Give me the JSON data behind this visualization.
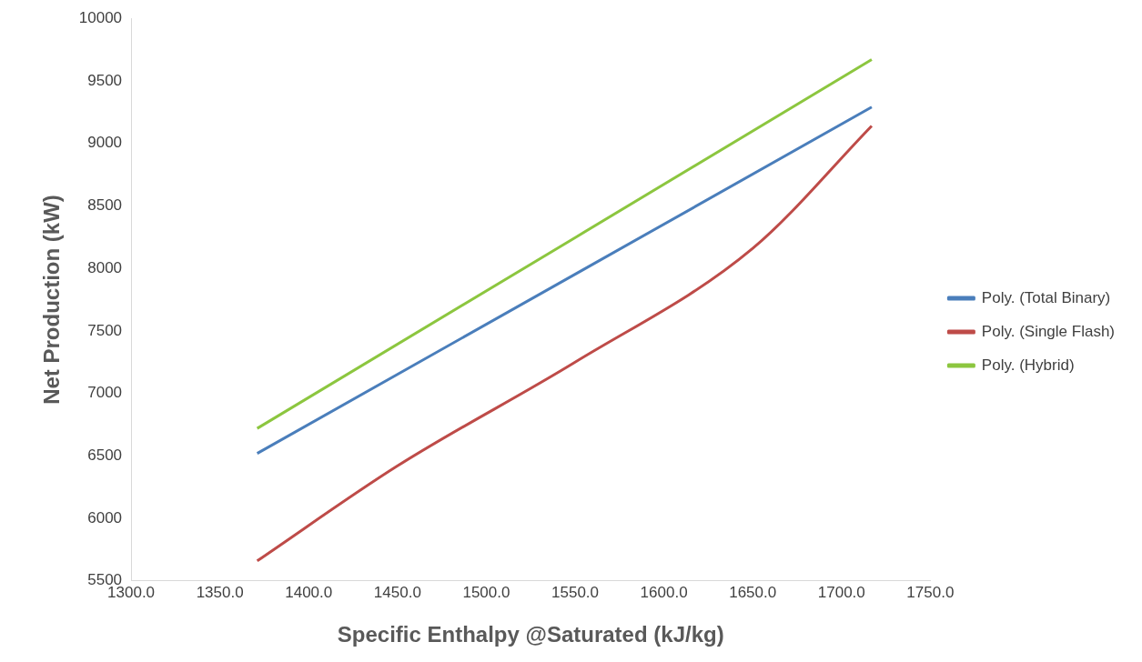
{
  "chart_data": {
    "type": "line",
    "xlabel": "Specific Enthalpy @Saturated (kJ/kg)",
    "ylabel": "Net Production (kW)",
    "xlim": [
      1300,
      1750
    ],
    "xticks": [
      {
        "value": 1300,
        "label": "1300.0"
      },
      {
        "value": 1350,
        "label": "1350.0"
      },
      {
        "value": 1400,
        "label": "1400.0"
      },
      {
        "value": 1450,
        "label": "1450.0"
      },
      {
        "value": 1500,
        "label": "1500.0"
      },
      {
        "value": 1550,
        "label": "1550.0"
      },
      {
        "value": 1600,
        "label": "1600.0"
      },
      {
        "value": 1650,
        "label": "1650.0"
      },
      {
        "value": 1700,
        "label": "1700.0"
      },
      {
        "value": 1750,
        "label": "1750.0"
      }
    ],
    "ylim": [
      5500,
      10000
    ],
    "yticks": [
      5500,
      6000,
      6500,
      7000,
      7500,
      8000,
      8500,
      9000,
      9500,
      10000
    ],
    "grid": false,
    "legend": "right",
    "marker": "none",
    "line_style": "solid",
    "series": [
      {
        "name": "Poly. (Total Binary)",
        "color": "#4a7ebb",
        "x": [
          1371,
          1717
        ],
        "values": [
          6520,
          9290
        ]
      },
      {
        "name": "Poly. (Single Flash)",
        "color": "#be4b48",
        "x": [
          1371,
          1450,
          1550,
          1650,
          1717
        ],
        "values": [
          5660,
          6420,
          7250,
          8160,
          9140
        ]
      },
      {
        "name": "Poly. (Hybrid)",
        "color": "#8cc63f",
        "x": [
          1371,
          1717
        ],
        "values": [
          6720,
          9670
        ]
      }
    ]
  }
}
